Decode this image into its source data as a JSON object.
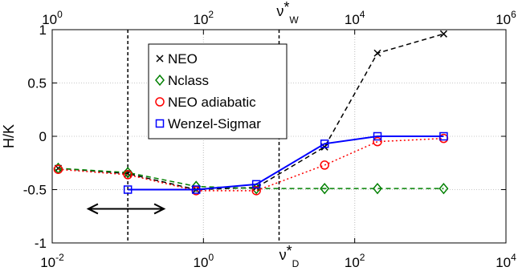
{
  "chart_data": {
    "type": "line",
    "ylabel": "H/K",
    "xlabel_bottom": {
      "base": "ν",
      "sup": "*",
      "sub": "D"
    },
    "xlabel_top": {
      "base": "ν",
      "sup": "*",
      "sub": "W"
    },
    "x_scale": "log",
    "xlim_bottom": [
      0.01,
      10000
    ],
    "bottom_ticks": [
      {
        "value": 0.01,
        "base": "10",
        "exp": "-2"
      },
      {
        "value": 1,
        "base": "10",
        "exp": "0"
      },
      {
        "value": 100,
        "base": "10",
        "exp": "2"
      },
      {
        "value": 10000,
        "base": "10",
        "exp": "4"
      }
    ],
    "top_ticks": [
      {
        "pos": 0.0,
        "base": "10",
        "exp": "0"
      },
      {
        "pos": 0.3333,
        "base": "10",
        "exp": "2"
      },
      {
        "pos": 0.6667,
        "base": "10",
        "exp": "4"
      },
      {
        "pos": 1.0,
        "base": "10",
        "exp": "6"
      }
    ],
    "ylim": [
      -1,
      1
    ],
    "yticks": [
      {
        "value": 1,
        "label": "1"
      },
      {
        "value": 0.5,
        "label": "0.5"
      },
      {
        "value": 0,
        "label": "0"
      },
      {
        "value": -0.5,
        "label": "-0.5"
      },
      {
        "value": -1,
        "label": "-1"
      }
    ],
    "grid": true,
    "legend_position": "top-left",
    "series": [
      {
        "name": "NEO",
        "color": "#000000",
        "marker": "x",
        "dash": "6,4",
        "x": [
          0.012,
          0.1,
          0.8,
          5,
          40,
          200,
          1500
        ],
        "y": [
          -0.3,
          -0.35,
          -0.5,
          -0.48,
          -0.1,
          0.78,
          0.96
        ]
      },
      {
        "name": "Nclass",
        "color": "#008000",
        "marker": "diamond",
        "dash": "6,4",
        "x": [
          0.012,
          0.1,
          0.8,
          5,
          40,
          200,
          1500
        ],
        "y": [
          -0.3,
          -0.34,
          -0.47,
          -0.49,
          -0.49,
          -0.49,
          -0.49
        ]
      },
      {
        "name": "NEO adiabatic",
        "color": "#ff0000",
        "marker": "circle",
        "dash": "2,3",
        "x": [
          0.012,
          0.1,
          0.8,
          5,
          40,
          200,
          1500
        ],
        "y": [
          -0.31,
          -0.36,
          -0.51,
          -0.51,
          -0.27,
          -0.05,
          -0.02
        ]
      },
      {
        "name": "Wenzel-Sigmar",
        "color": "#0000ff",
        "marker": "square",
        "dash": "",
        "x": [
          0.1,
          0.8,
          5,
          40,
          200,
          1500
        ],
        "y": [
          -0.5,
          -0.5,
          -0.45,
          -0.07,
          0.0,
          0.0
        ]
      }
    ],
    "vlines": [
      0.1,
      10
    ],
    "arrow": {
      "x1": 0.03,
      "x2": 0.3,
      "y": -0.68
    }
  }
}
